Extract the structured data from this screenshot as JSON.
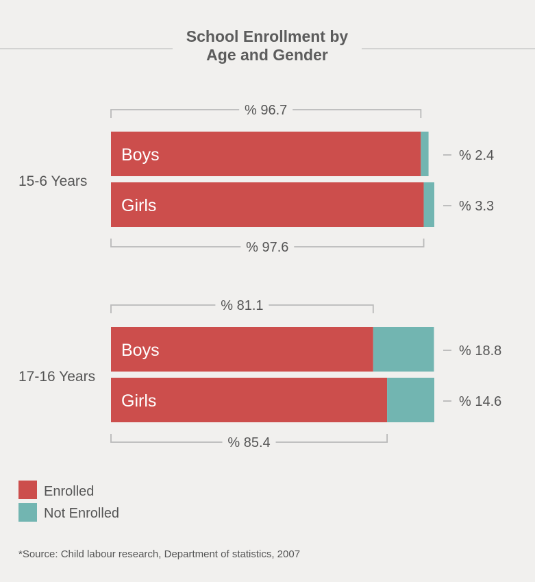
{
  "chart_data": {
    "type": "bar",
    "orientation": "horizontal",
    "stacked": true,
    "title": "School Enrollment by Age and Gender",
    "title_lines": [
      "School Enrollment by",
      "Age and Gender"
    ],
    "groups": [
      {
        "label": "15-6 Years",
        "bars": [
          {
            "category": "Boys",
            "enrolled": 96.7,
            "not_enrolled": 2.4,
            "enrolled_label": "% 96.7",
            "not_enrolled_label": "% 2.4"
          },
          {
            "category": "Girls",
            "enrolled": 97.6,
            "not_enrolled": 3.3,
            "enrolled_label": "% 97.6",
            "not_enrolled_label": "% 3.3"
          }
        ]
      },
      {
        "label": "17-16 Years",
        "bars": [
          {
            "category": "Boys",
            "enrolled": 81.1,
            "not_enrolled": 18.8,
            "enrolled_label": "% 81.1",
            "not_enrolled_label": "% 18.8"
          },
          {
            "category": "Girls",
            "enrolled": 85.4,
            "not_enrolled": 14.6,
            "enrolled_label": "% 85.4",
            "not_enrolled_label": "% 14.6"
          }
        ]
      }
    ],
    "series": [
      {
        "name": "Enrolled",
        "color": "#cc4e4c"
      },
      {
        "name": "Not Enrolled",
        "color": "#72b5b1"
      }
    ],
    "legend_position": "bottom-left",
    "source": "*Source: Child labour research, Department of statistics, 2007"
  },
  "colors": {
    "background": "#f1f0ee",
    "enrolled": "#cc4e4c",
    "not_enrolled": "#72b5b1",
    "bracket": "#b9b9b9",
    "text": "#555555"
  }
}
